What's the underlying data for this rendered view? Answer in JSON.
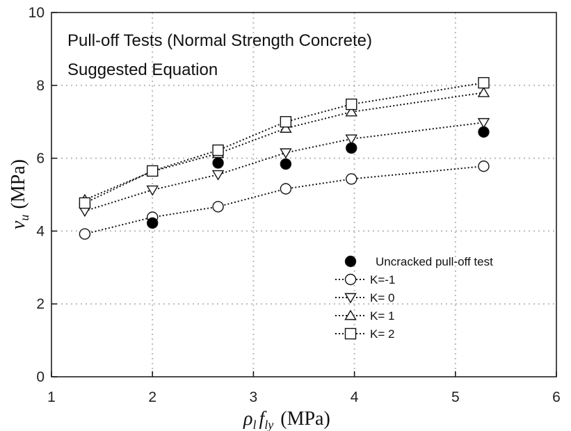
{
  "chart_data": {
    "type": "scatter",
    "title_lines": [
      "Pull-off Tests (Normal Strength Concrete)",
      "Suggested Equation"
    ],
    "xlim": [
      1,
      6
    ],
    "ylim": [
      0,
      10
    ],
    "x_ticks": [
      1,
      2,
      3,
      4,
      5,
      6
    ],
    "y_ticks": [
      0,
      2,
      4,
      6,
      8,
      10
    ],
    "grid": true,
    "xlabel": {
      "rho": "ρ",
      "rho_sub": "l",
      "f": "f",
      "f_sub": "ly",
      "unit": "(MPa)"
    },
    "ylabel": {
      "v": "v",
      "v_sub": "u",
      "unit": "(MPa)"
    },
    "legend_position": "bottom-right",
    "series": [
      {
        "name": "Uncracked pull-off test",
        "marker": "filled-circle",
        "line": false,
        "x": [
          2.0,
          2.65,
          3.32,
          3.97,
          5.28
        ],
        "y": [
          4.22,
          5.87,
          5.84,
          6.28,
          6.72
        ]
      },
      {
        "name": "K=-1",
        "marker": "open-circle",
        "line": true,
        "x": [
          1.33,
          2.0,
          2.65,
          3.32,
          3.97,
          5.28
        ],
        "y": [
          3.92,
          4.38,
          4.67,
          5.16,
          5.43,
          5.78
        ]
      },
      {
        "name": "K= 0",
        "marker": "down-triangle",
        "line": true,
        "x": [
          1.33,
          2.0,
          2.65,
          3.32,
          3.97,
          5.28
        ],
        "y": [
          4.55,
          5.13,
          5.55,
          6.15,
          6.53,
          6.98
        ]
      },
      {
        "name": "K= 1",
        "marker": "up-triangle",
        "line": true,
        "x": [
          1.33,
          2.0,
          2.65,
          3.32,
          3.97,
          5.28
        ],
        "y": [
          4.86,
          5.64,
          6.13,
          6.82,
          7.27,
          7.8
        ]
      },
      {
        "name": "K= 2",
        "marker": "open-square",
        "line": true,
        "x": [
          1.33,
          2.0,
          2.65,
          3.32,
          3.97,
          5.28
        ],
        "y": [
          4.77,
          5.65,
          6.22,
          7.0,
          7.48,
          8.07
        ]
      }
    ]
  }
}
